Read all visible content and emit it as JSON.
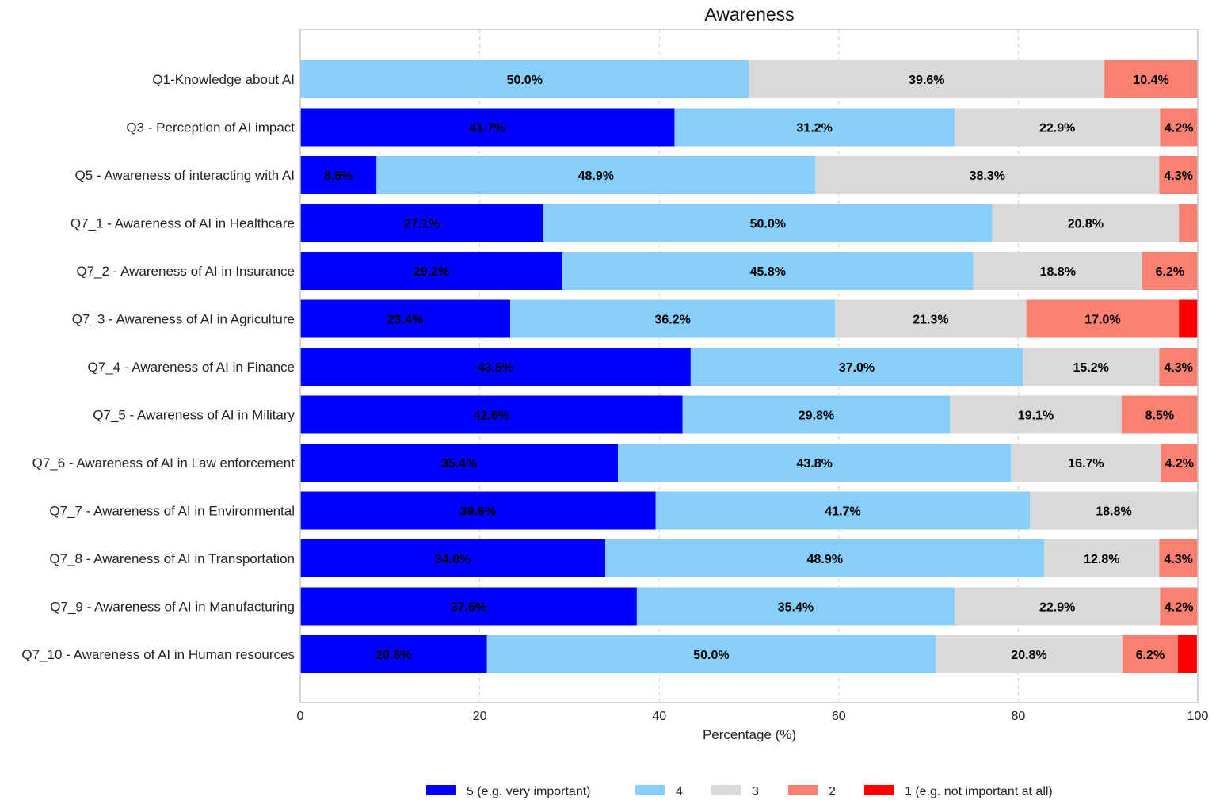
{
  "chart_data": {
    "type": "bar",
    "orientation": "horizontal",
    "stacked": true,
    "title": "Awareness",
    "xlabel": "Percentage (%)",
    "ylabel": "",
    "xlim": [
      0,
      100
    ],
    "xticks": [
      0,
      20,
      40,
      60,
      80,
      100
    ],
    "grid": true,
    "legend_placement": "bottom",
    "categories": [
      "Q1-Knowledge about AI",
      "Q3 - Perception of AI impact",
      "Q5 - Awareness of interacting with AI",
      "Q7_1 - Awareness of AI in Healthcare",
      "Q7_2 - Awareness of AI in Insurance",
      "Q7_3 - Awareness of AI in Agriculture",
      "Q7_4 - Awareness of AI in Finance",
      "Q7_5 - Awareness of AI in Military",
      "Q7_6 - Awareness of AI in Law enforcement",
      "Q7_7 - Awareness of AI in Environmental",
      "Q7_8 - Awareness of AI in Transportation",
      "Q7_9 - Awareness of AI in Manufacturing",
      "Q7_10 - Awareness of AI in Human resources"
    ],
    "series": [
      {
        "name": "5 (e.g. very important)",
        "color": "#0000ff",
        "values": [
          0,
          41.7,
          8.5,
          27.1,
          29.2,
          23.4,
          43.5,
          42.6,
          35.4,
          39.6,
          34.0,
          37.5,
          20.8
        ]
      },
      {
        "name": "4",
        "color": "#87cefa",
        "values": [
          50.0,
          31.2,
          48.9,
          50.0,
          45.8,
          36.2,
          37.0,
          29.8,
          43.8,
          41.7,
          48.9,
          35.4,
          50.0
        ]
      },
      {
        "name": "3",
        "color": "#d9d9d9",
        "values": [
          39.6,
          22.9,
          38.3,
          20.8,
          18.8,
          21.3,
          15.2,
          19.1,
          16.7,
          18.8,
          12.8,
          22.9,
          20.8
        ]
      },
      {
        "name": "2",
        "color": "#fa8072",
        "values": [
          10.4,
          4.2,
          4.3,
          2.1,
          6.2,
          17.0,
          4.3,
          8.5,
          4.2,
          0,
          4.3,
          4.2,
          6.2
        ]
      },
      {
        "name": "1 (e.g. not important at all)",
        "color": "#ff0000",
        "values": [
          0,
          0,
          0,
          0,
          0,
          2.1,
          0,
          0,
          0,
          0,
          0,
          0,
          2.1
        ]
      }
    ]
  }
}
